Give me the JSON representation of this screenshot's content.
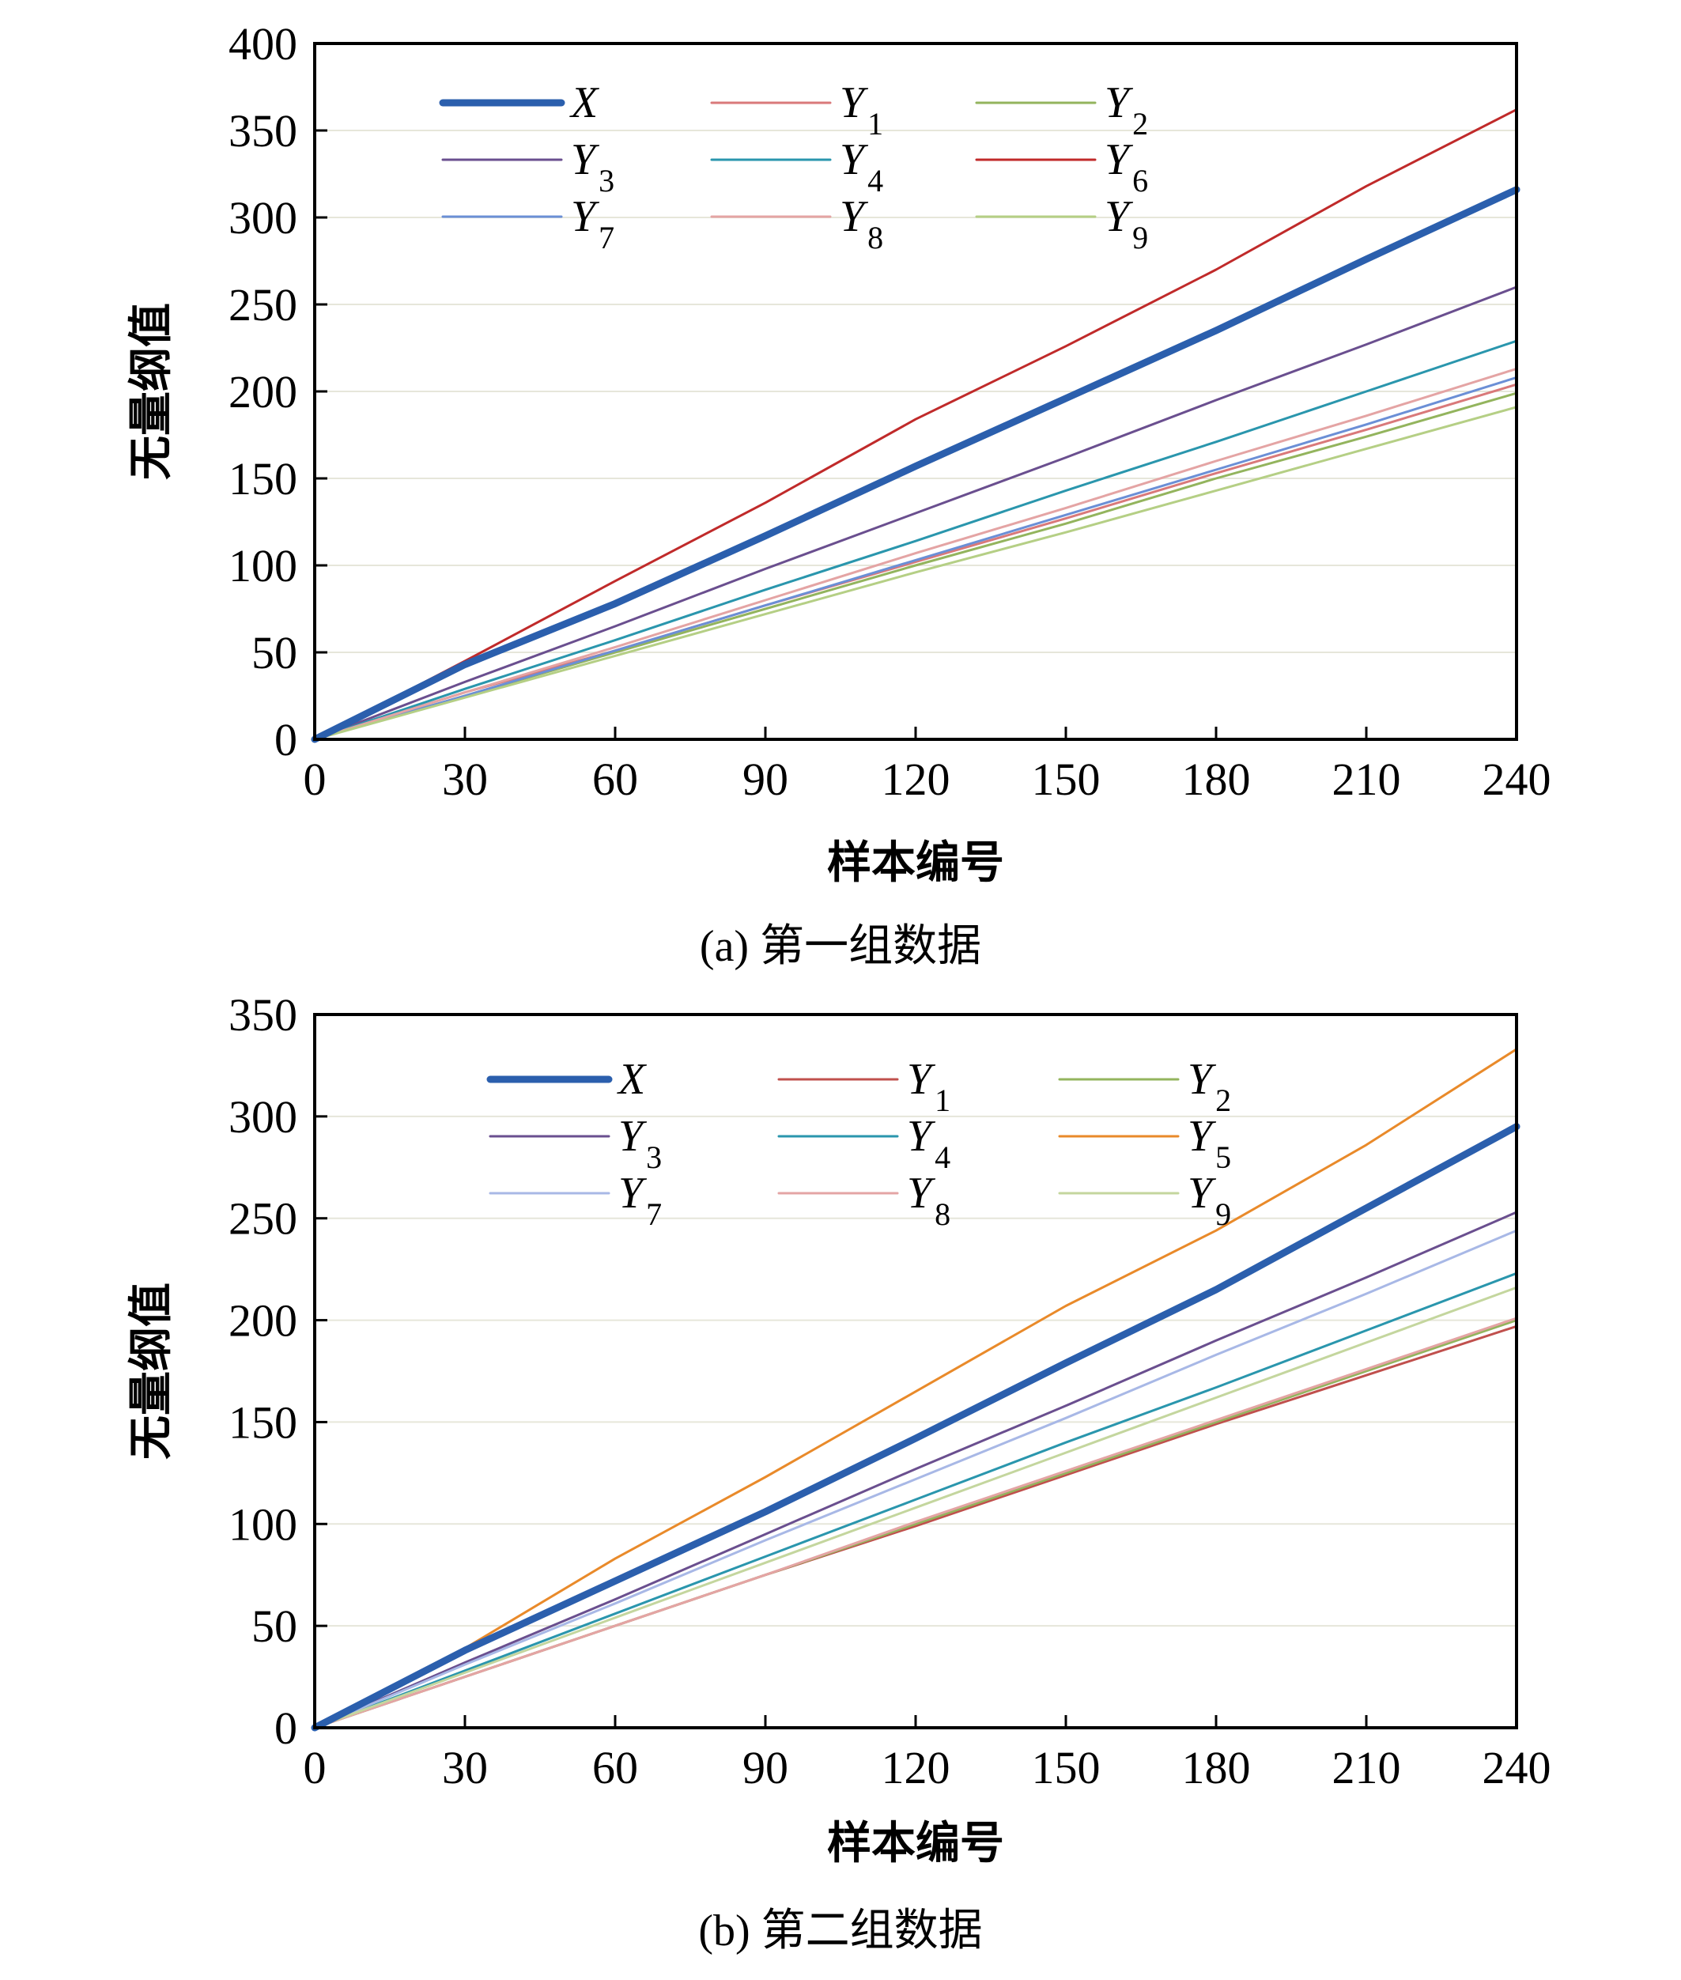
{
  "chart_data": [
    {
      "type": "line",
      "caption": "(a) 第一组数据",
      "xlabel": "样本编号",
      "ylabel": "无量纲值",
      "xlim": [
        0,
        240
      ],
      "ylim": [
        0,
        400
      ],
      "xticks": [
        0,
        30,
        60,
        90,
        120,
        150,
        180,
        210,
        240
      ],
      "yticks": [
        0,
        50,
        100,
        150,
        200,
        250,
        300,
        350,
        400
      ],
      "grid": "horizontal",
      "legend_position": "top-left",
      "series": [
        {
          "name": "X",
          "label": "X",
          "sub": "",
          "color": "#2b5fad",
          "width": 9,
          "x": [
            0,
            30,
            60,
            90,
            120,
            150,
            180,
            210,
            240
          ],
          "values": [
            0,
            43,
            78,
            117,
            157,
            196,
            235,
            276,
            316
          ]
        },
        {
          "name": "Y1",
          "label": "Y",
          "sub": "1",
          "color": "#d9797a",
          "width": 3,
          "x": [
            0,
            30,
            60,
            90,
            120,
            150,
            180,
            210,
            240
          ],
          "values": [
            0,
            27,
            51,
            77,
            102,
            127,
            153,
            178,
            204
          ]
        },
        {
          "name": "Y2",
          "label": "Y",
          "sub": "2",
          "color": "#93b45d",
          "width": 3,
          "x": [
            0,
            30,
            60,
            90,
            120,
            150,
            180,
            210,
            240
          ],
          "values": [
            0,
            25,
            50,
            75,
            100,
            124,
            150,
            174,
            199
          ]
        },
        {
          "name": "Y3",
          "label": "Y",
          "sub": "3",
          "color": "#6a4f8f",
          "width": 3,
          "x": [
            0,
            30,
            60,
            90,
            120,
            150,
            180,
            210,
            240
          ],
          "values": [
            0,
            33,
            65,
            98,
            130,
            162,
            195,
            227,
            260
          ]
        },
        {
          "name": "Y4",
          "label": "Y",
          "sub": "4",
          "color": "#2a96ad",
          "width": 3,
          "x": [
            0,
            30,
            60,
            90,
            120,
            150,
            180,
            210,
            240
          ],
          "values": [
            0,
            29,
            57,
            86,
            114,
            143,
            171,
            200,
            229
          ]
        },
        {
          "name": "Y6",
          "label": "Y",
          "sub": "6",
          "color": "#c02a2a",
          "width": 3,
          "x": [
            0,
            30,
            60,
            90,
            120,
            150,
            180,
            210,
            240
          ],
          "values": [
            0,
            45,
            91,
            136,
            184,
            226,
            270,
            318,
            362
          ]
        },
        {
          "name": "Y7",
          "label": "Y",
          "sub": "7",
          "color": "#6b8fd6",
          "width": 3,
          "x": [
            0,
            30,
            60,
            90,
            120,
            150,
            180,
            210,
            240
          ],
          "values": [
            0,
            25,
            51,
            77,
            103,
            129,
            155,
            181,
            208
          ]
        },
        {
          "name": "Y8",
          "label": "Y",
          "sub": "8",
          "color": "#e4a4a4",
          "width": 3,
          "x": [
            0,
            30,
            60,
            90,
            120,
            150,
            180,
            210,
            240
          ],
          "values": [
            0,
            27,
            53,
            80,
            107,
            133,
            160,
            186,
            213
          ]
        },
        {
          "name": "Y9",
          "label": "Y",
          "sub": "9",
          "color": "#b5cf85",
          "width": 3,
          "x": [
            0,
            30,
            60,
            90,
            120,
            150,
            180,
            210,
            240
          ],
          "values": [
            0,
            24,
            48,
            72,
            96,
            119,
            143,
            167,
            191
          ]
        }
      ]
    },
    {
      "type": "line",
      "caption": "(b) 第二组数据",
      "xlabel": "样本编号",
      "ylabel": "无量纲值",
      "xlim": [
        0,
        240
      ],
      "ylim": [
        0,
        350
      ],
      "xticks": [
        0,
        30,
        60,
        90,
        120,
        150,
        180,
        210,
        240
      ],
      "yticks": [
        0,
        50,
        100,
        150,
        200,
        250,
        300,
        350
      ],
      "grid": "horizontal",
      "legend_position": "top-left",
      "series": [
        {
          "name": "X",
          "label": "X",
          "sub": "",
          "color": "#2b5fad",
          "width": 9,
          "x": [
            0,
            30,
            60,
            90,
            120,
            150,
            180,
            210,
            240
          ],
          "values": [
            0,
            38,
            72,
            106,
            142,
            179,
            215,
            255,
            295
          ]
        },
        {
          "name": "Y1",
          "label": "Y",
          "sub": "1",
          "color": "#c0504d",
          "width": 3,
          "x": [
            0,
            30,
            60,
            90,
            120,
            150,
            180,
            210,
            240
          ],
          "values": [
            0,
            25,
            50,
            75,
            99,
            124,
            149,
            173,
            197
          ]
        },
        {
          "name": "Y2",
          "label": "Y",
          "sub": "2",
          "color": "#93b45d",
          "width": 3,
          "x": [
            0,
            30,
            60,
            90,
            120,
            150,
            180,
            210,
            240
          ],
          "values": [
            0,
            25,
            50,
            75,
            100,
            125,
            150,
            175,
            200
          ]
        },
        {
          "name": "Y3",
          "label": "Y",
          "sub": "3",
          "color": "#6a4f8f",
          "width": 3,
          "x": [
            0,
            30,
            60,
            90,
            120,
            150,
            180,
            210,
            240
          ],
          "values": [
            0,
            32,
            63,
            95,
            127,
            158,
            190,
            221,
            253
          ]
        },
        {
          "name": "Y4",
          "label": "Y",
          "sub": "4",
          "color": "#2a96ad",
          "width": 3,
          "x": [
            0,
            30,
            60,
            90,
            120,
            150,
            180,
            210,
            240
          ],
          "values": [
            0,
            28,
            56,
            84,
            112,
            140,
            167,
            195,
            223
          ]
        },
        {
          "name": "Y5",
          "label": "Y",
          "sub": "5",
          "color": "#e98a2a",
          "width": 3,
          "x": [
            0,
            30,
            60,
            90,
            120,
            150,
            180,
            210,
            240
          ],
          "values": [
            0,
            39,
            83,
            123,
            165,
            207,
            244,
            286,
            333
          ]
        },
        {
          "name": "Y7",
          "label": "Y",
          "sub": "7",
          "color": "#a8b8e6",
          "width": 3,
          "x": [
            0,
            30,
            60,
            90,
            120,
            150,
            180,
            210,
            240
          ],
          "values": [
            0,
            31,
            61,
            92,
            122,
            152,
            183,
            213,
            244
          ]
        },
        {
          "name": "Y8",
          "label": "Y",
          "sub": "8",
          "color": "#e4a4a4",
          "width": 3,
          "x": [
            0,
            30,
            60,
            90,
            120,
            150,
            180,
            210,
            240
          ],
          "values": [
            0,
            25,
            50,
            75,
            101,
            126,
            151,
            176,
            201
          ]
        },
        {
          "name": "Y9",
          "label": "Y",
          "sub": "9",
          "color": "#c4d69e",
          "width": 3,
          "x": [
            0,
            30,
            60,
            90,
            120,
            150,
            180,
            210,
            240
          ],
          "values": [
            0,
            27,
            54,
            81,
            108,
            135,
            162,
            189,
            216
          ]
        }
      ]
    }
  ]
}
